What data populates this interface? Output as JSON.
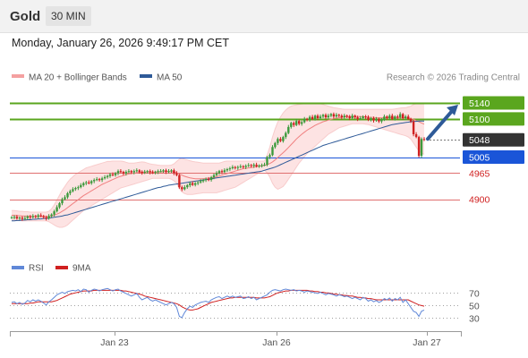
{
  "header": {
    "instrument": "Gold",
    "timeframe": "30 MIN"
  },
  "datetime": "Monday, January 26, 2026 9:49:17 PM CET",
  "legend": {
    "bb_label": "MA 20 + Bollinger Bands",
    "ma50_label": "MA 50",
    "rsi_label": "RSI",
    "rsi_ma_label": "9MA"
  },
  "credit": "Research © 2026 Trading Central",
  "colors": {
    "bb": "#f4a0a0",
    "ma50": "#2e5a98",
    "up": "#3c9a3c",
    "down": "#d02020",
    "resistance": "#5aa61e",
    "support_blue": "#1a55d8",
    "support_red": "#e07070",
    "current": "#333333",
    "rsi": "#6088d8",
    "rsi_ma": "#d02020"
  },
  "chart_data": [
    {
      "type": "candlestick",
      "x_ticks": [
        "Jan 23",
        "Jan 26",
        "Jan 27"
      ],
      "ylim": [
        4830,
        5160
      ],
      "levels": [
        {
          "value": 5140,
          "label": "5140",
          "role": "resistance",
          "style": "tag"
        },
        {
          "value": 5100,
          "label": "5100",
          "role": "resistance",
          "style": "tag"
        },
        {
          "value": 5048,
          "label": "5048",
          "role": "current",
          "style": "tag"
        },
        {
          "value": 5005,
          "label": "5005",
          "role": "support",
          "style": "tag"
        },
        {
          "value": 4965,
          "label": "4965",
          "role": "support",
          "style": "text"
        },
        {
          "value": 4900,
          "label": "4900",
          "role": "support",
          "style": "text"
        }
      ],
      "forecast_arrow": {
        "from": 5048,
        "to": 5140,
        "direction": "up"
      },
      "close": [
        4855,
        4856,
        4852,
        4854,
        4851,
        4853,
        4857,
        4855,
        4858,
        4856,
        4860,
        4858,
        4855,
        4852,
        4858,
        4862,
        4870,
        4880,
        4890,
        4900,
        4905,
        4915,
        4920,
        4925,
        4928,
        4930,
        4935,
        4940,
        4942,
        4940,
        4945,
        4948,
        4950,
        4948,
        4952,
        4955,
        4958,
        4962,
        4960,
        4965,
        4970,
        4968,
        4964,
        4968,
        4970,
        4967,
        4970,
        4972,
        4968,
        4966,
        4968,
        4970,
        4967,
        4966,
        4968,
        4970,
        4970,
        4972,
        4968,
        4970,
        4972,
        4965,
        4960,
        4930,
        4925,
        4930,
        4935,
        4940,
        4936,
        4940,
        4942,
        4945,
        4948,
        4950,
        4948,
        4955,
        4960,
        4965,
        4970,
        4968,
        4972,
        4975,
        4977,
        4980,
        4978,
        4980,
        4982,
        4980,
        4983,
        4985,
        4983,
        4986,
        4982,
        4984,
        4985,
        4986,
        5005,
        5010,
        5030,
        5040,
        5050,
        5045,
        5055,
        5065,
        5080,
        5090,
        5085,
        5095,
        5088,
        5092,
        5100,
        5098,
        5105,
        5100,
        5108,
        5102,
        5106,
        5110,
        5104,
        5108,
        5112,
        5106,
        5110,
        5108,
        5104,
        5108,
        5106,
        5102,
        5108,
        5104,
        5100,
        5102,
        5106,
        5104,
        5098,
        5102,
        5096,
        5100,
        5094,
        5098,
        5106,
        5102,
        5108,
        5100,
        5106,
        5104,
        5112,
        5102,
        5106,
        5100,
        5094,
        5062,
        5055,
        5008,
        5050,
        5048
      ],
      "ma20": [
        4860,
        4860,
        4859,
        4859,
        4858,
        4858,
        4858,
        4857,
        4857,
        4857,
        4857,
        4857,
        4857,
        4857,
        4857,
        4858,
        4860,
        4863,
        4866,
        4870,
        4874,
        4879,
        4884,
        4889,
        4894,
        4899,
        4904,
        4909,
        4913,
        4917,
        4921,
        4925,
        4929,
        4933,
        4937,
        4940,
        4943,
        4946,
        4949,
        4952,
        4955,
        4957,
        4959,
        4961,
        4963,
        4964,
        4965,
        4966,
        4967,
        4968,
        4968,
        4968,
        4968,
        4968,
        4968,
        4968,
        4968,
        4969,
        4969,
        4969,
        4969,
        4968,
        4966,
        4963,
        4960,
        4957,
        4955,
        4953,
        4952,
        4951,
        4951,
        4951,
        4951,
        4952,
        4952,
        4953,
        4954,
        4956,
        4958,
        4960,
        4962,
        4964,
        4966,
        4968,
        4970,
        4972,
        4974,
        4976,
        4977,
        4978,
        4979,
        4980,
        4981,
        4982,
        4983,
        4984,
        4986,
        4989,
        4993,
        4998,
        5004,
        5010,
        5016,
        5022,
        5029,
        5036,
        5043,
        5050,
        5056,
        5062,
        5067,
        5072,
        5076,
        5080,
        5084,
        5087,
        5090,
        5093,
        5095,
        5097,
        5099,
        5101,
        5102,
        5103,
        5104,
        5105,
        5106,
        5106,
        5106,
        5106,
        5106,
        5106,
        5106,
        5105,
        5105,
        5104,
        5104,
        5103,
        5103,
        5103,
        5103,
        5103,
        5103,
        5103,
        5103,
        5103,
        5103,
        5103,
        5103,
        5102,
        5101,
        5099,
        5096,
        5093,
        5090,
        5087
      ],
      "ma50": [
        4846,
        4846,
        4847,
        4847,
        4848,
        4848,
        4849,
        4849,
        4850,
        4850,
        4851,
        4851,
        4852,
        4852,
        4853,
        4854,
        4855,
        4856,
        4857,
        4858,
        4860,
        4861,
        4863,
        4865,
        4867,
        4869,
        4871,
        4873,
        4875,
        4877,
        4879,
        4881,
        4883,
        4885,
        4887,
        4889,
        4891,
        4893,
        4895,
        4897,
        4899,
        4901,
        4903,
        4905,
        4907,
        4909,
        4911,
        4913,
        4915,
        4917,
        4919,
        4921,
        4923,
        4925,
        4927,
        4929,
        4930,
        4932,
        4933,
        4935,
        4936,
        4937,
        4938,
        4939,
        4940,
        4941,
        4942,
        4943,
        4944,
        4945,
        4946,
        4947,
        4948,
        4949,
        4950,
        4951,
        4952,
        4953,
        4954,
        4955,
        4956,
        4957,
        4958,
        4959,
        4960,
        4961,
        4962,
        4963,
        4964,
        4965,
        4966,
        4967,
        4968,
        4969,
        4970,
        4972,
        4974,
        4976,
        4978,
        4980,
        4983,
        4986,
        4989,
        4992,
        4995,
        4998,
        5001,
        5004,
        5007,
        5010,
        5013,
        5016,
        5019,
        5022,
        5025,
        5028,
        5031,
        5034,
        5036,
        5038,
        5040,
        5042,
        5044,
        5046,
        5048,
        5050,
        5052,
        5054,
        5056,
        5058,
        5060,
        5062,
        5064,
        5066,
        5068,
        5070,
        5072,
        5074,
        5076,
        5078,
        5080,
        5082,
        5084,
        5086,
        5087,
        5088,
        5089,
        5090,
        5091,
        5092,
        5093,
        5094,
        5094,
        5095,
        5095,
        5095
      ],
      "bb_upper": [
        4872,
        4872,
        4871,
        4870,
        4870,
        4869,
        4869,
        4868,
        4868,
        4868,
        4868,
        4868,
        4868,
        4868,
        4870,
        4876,
        4886,
        4898,
        4910,
        4922,
        4932,
        4942,
        4950,
        4956,
        4962,
        4966,
        4970,
        4974,
        4978,
        4980,
        4982,
        4984,
        4986,
        4988,
        4990,
        4992,
        4994,
        4994,
        4995,
        4995,
        4995,
        4995,
        4994,
        4992,
        4990,
        4990,
        4990,
        4991,
        4992,
        4993,
        4992,
        4990,
        4988,
        4987,
        4986,
        4985,
        4984,
        4984,
        4984,
        4984,
        4985,
        4988,
        4994,
        5000,
        5002,
        5000,
        4998,
        4996,
        4994,
        4993,
        4992,
        4991,
        4990,
        4990,
        4990,
        4990,
        4990,
        4990,
        4990,
        4992,
        4994,
        4995,
        4995,
        4995,
        4995,
        4995,
        4995,
        4995,
        4995,
        4995,
        4995,
        4995,
        4995,
        4995,
        4995,
        4995,
        5010,
        5030,
        5055,
        5075,
        5092,
        5105,
        5115,
        5122,
        5128,
        5132,
        5134,
        5135,
        5136,
        5137,
        5138,
        5139,
        5140,
        5140,
        5140,
        5139,
        5138,
        5136,
        5134,
        5132,
        5130,
        5128,
        5127,
        5126,
        5125,
        5124,
        5124,
        5124,
        5124,
        5124,
        5124,
        5124,
        5124,
        5124,
        5124,
        5124,
        5124,
        5124,
        5124,
        5124,
        5124,
        5124,
        5124,
        5124,
        5125,
        5126,
        5127,
        5128,
        5128,
        5130,
        5132,
        5136,
        5138,
        5140,
        5140,
        5140
      ],
      "bb_lower": [
        4848,
        4848,
        4847,
        4847,
        4846,
        4846,
        4846,
        4846,
        4846,
        4846,
        4846,
        4846,
        4846,
        4846,
        4844,
        4840,
        4836,
        4832,
        4830,
        4830,
        4832,
        4836,
        4842,
        4848,
        4854,
        4860,
        4866,
        4872,
        4876,
        4880,
        4884,
        4888,
        4892,
        4896,
        4900,
        4904,
        4908,
        4912,
        4916,
        4920,
        4924,
        4928,
        4930,
        4932,
        4934,
        4936,
        4938,
        4940,
        4942,
        4944,
        4946,
        4948,
        4950,
        4952,
        4952,
        4952,
        4952,
        4952,
        4952,
        4952,
        4950,
        4946,
        4940,
        4926,
        4918,
        4914,
        4912,
        4912,
        4912,
        4913,
        4914,
        4915,
        4916,
        4916,
        4916,
        4916,
        4916,
        4916,
        4918,
        4920,
        4922,
        4924,
        4926,
        4928,
        4930,
        4934,
        4938,
        4942,
        4946,
        4950,
        4954,
        4958,
        4962,
        4966,
        4970,
        4972,
        4966,
        4955,
        4940,
        4930,
        4925,
        4928,
        4932,
        4940,
        4950,
        4960,
        4970,
        4980,
        4990,
        4998,
        5006,
        5014,
        5020,
        5026,
        5032,
        5038,
        5044,
        5050,
        5056,
        5062,
        5066,
        5070,
        5074,
        5078,
        5080,
        5082,
        5084,
        5086,
        5088,
        5088,
        5088,
        5088,
        5088,
        5087,
        5086,
        5084,
        5082,
        5080,
        5078,
        5076,
        5074,
        5072,
        5070,
        5068,
        5066,
        5064,
        5062,
        5060,
        5058,
        5055,
        5050,
        5040,
        5030,
        5020,
        5015,
        5012
      ]
    },
    {
      "type": "line",
      "title": "RSI",
      "y_ticks": [
        70,
        50,
        30
      ],
      "ylim": [
        20,
        82
      ],
      "series": [
        {
          "name": "RSI",
          "values": [
            54,
            55,
            52,
            54,
            51,
            53,
            57,
            55,
            58,
            56,
            58,
            56,
            53,
            50,
            55,
            58,
            62,
            66,
            68,
            70,
            68,
            71,
            72,
            73,
            72,
            74,
            71,
            75,
            74,
            70,
            73,
            75,
            74,
            72,
            74,
            75,
            76,
            74,
            72,
            74,
            75,
            72,
            70,
            68,
            66,
            64,
            66,
            68,
            62,
            58,
            60,
            62,
            58,
            56,
            58,
            56,
            54,
            52,
            50,
            52,
            54,
            52,
            46,
            32,
            30,
            38,
            44,
            48,
            46,
            50,
            52,
            54,
            55,
            56,
            54,
            58,
            60,
            62,
            63,
            60,
            62,
            64,
            62,
            64,
            62,
            63,
            64,
            60,
            61,
            63,
            60,
            62,
            58,
            60,
            62,
            64,
            66,
            70,
            73,
            74,
            73,
            72,
            74,
            75,
            74,
            73,
            74,
            72,
            73,
            72,
            70,
            72,
            71,
            70,
            69,
            68,
            70,
            68,
            66,
            68,
            67,
            66,
            64,
            66,
            65,
            63,
            64,
            62,
            60,
            62,
            60,
            58,
            62,
            60,
            56,
            58,
            55,
            57,
            54,
            56,
            60,
            58,
            61,
            56,
            60,
            58,
            62,
            54,
            58,
            52,
            46,
            40,
            38,
            32,
            40,
            42
          ]
        },
        {
          "name": "9MA",
          "values": [
            52,
            52,
            52,
            52,
            52,
            52,
            52,
            53,
            53,
            54,
            55,
            55,
            55,
            55,
            55,
            55,
            56,
            57,
            59,
            61,
            63,
            65,
            67,
            68,
            69,
            70,
            71,
            72,
            72,
            72,
            72,
            73,
            73,
            73,
            73,
            73,
            73,
            73,
            73,
            73,
            73,
            73,
            72,
            72,
            71,
            70,
            69,
            68,
            67,
            66,
            64,
            63,
            62,
            61,
            60,
            59,
            58,
            57,
            56,
            55,
            54,
            53,
            52,
            50,
            47,
            45,
            43,
            42,
            42,
            43,
            44,
            46,
            48,
            50,
            52,
            54,
            55,
            56,
            57,
            58,
            59,
            60,
            61,
            61,
            62,
            62,
            62,
            62,
            62,
            62,
            62,
            62,
            61,
            61,
            61,
            61,
            62,
            63,
            65,
            67,
            69,
            70,
            71,
            72,
            72,
            73,
            73,
            73,
            73,
            73,
            73,
            73,
            72,
            72,
            71,
            71,
            70,
            70,
            69,
            69,
            68,
            67,
            67,
            66,
            66,
            65,
            65,
            64,
            64,
            63,
            62,
            62,
            61,
            61,
            60,
            60,
            59,
            58,
            58,
            58,
            58,
            58,
            58,
            58,
            58,
            58,
            58,
            58,
            58,
            58,
            56,
            54,
            52,
            50,
            49,
            48
          ]
        }
      ]
    }
  ]
}
